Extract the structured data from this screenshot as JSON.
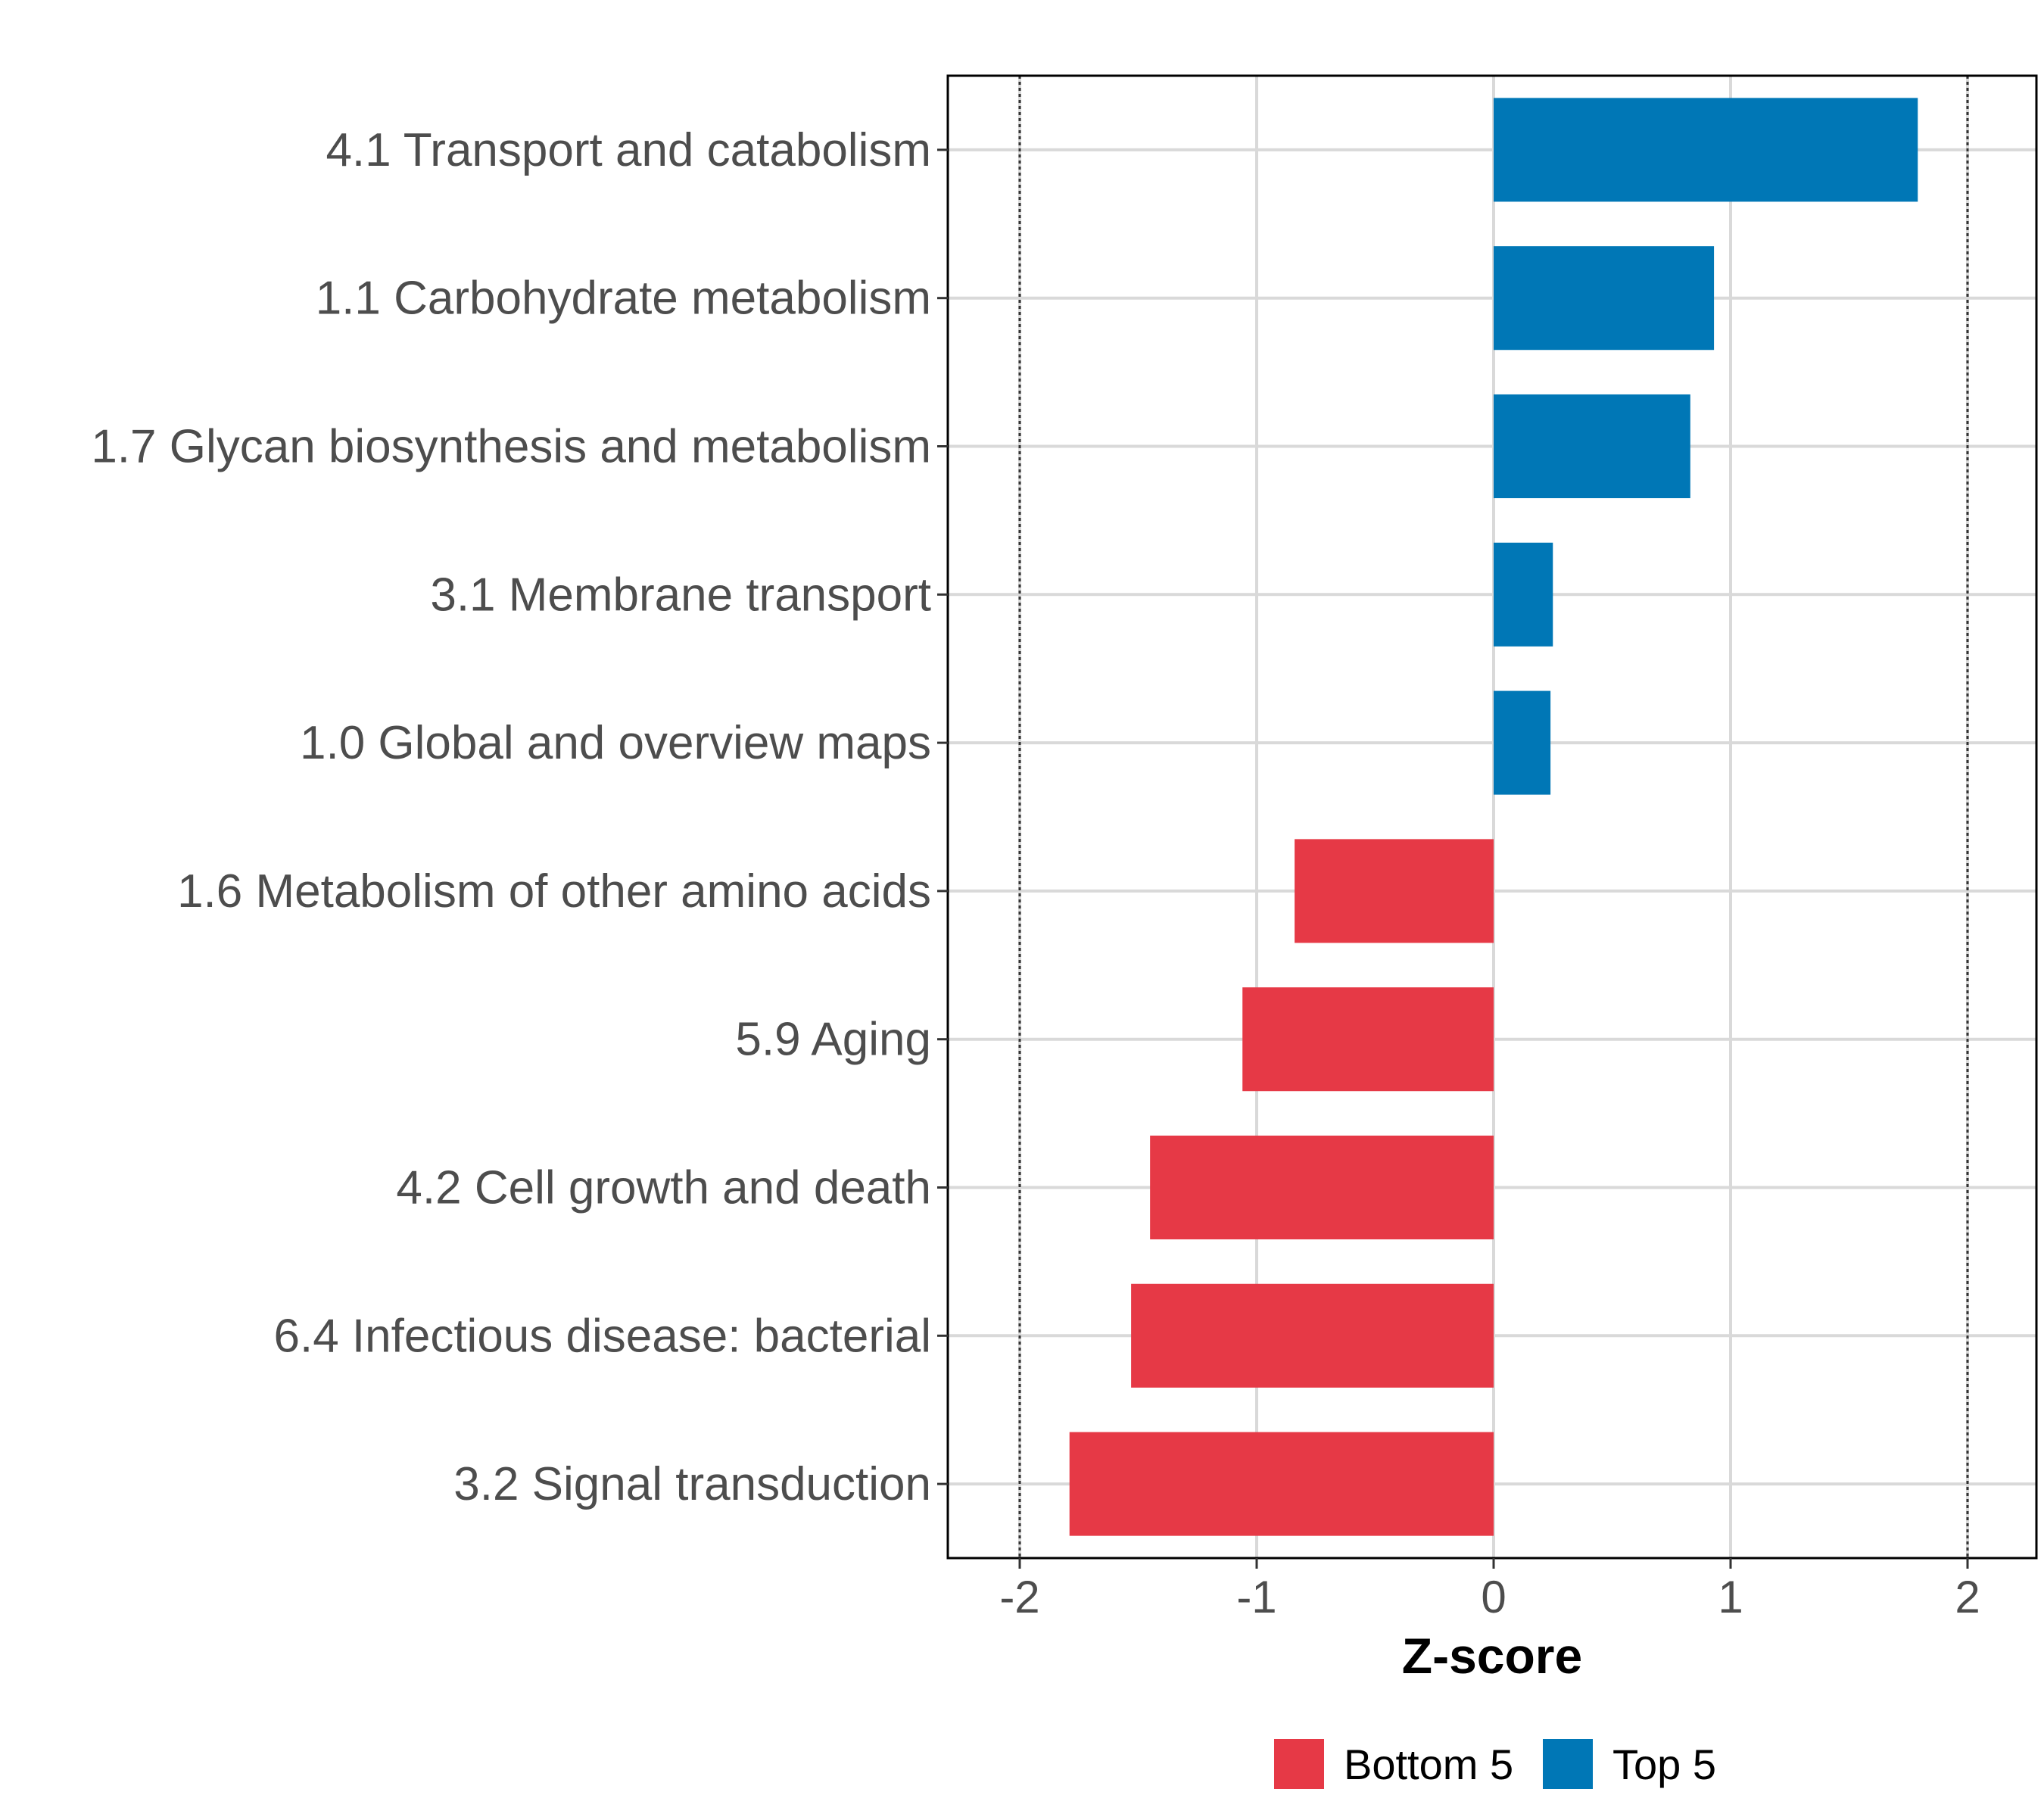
{
  "chart_data": {
    "type": "bar",
    "orientation": "horizontal",
    "title": "",
    "xlabel": "Z-score",
    "ylabel": "",
    "xlim": [
      -2.3,
      2.3
    ],
    "xticks": [
      -2,
      -1,
      0,
      1,
      2
    ],
    "xtick_labels": [
      "-2",
      "-1",
      "0",
      "1",
      "2"
    ],
    "reference_lines": [
      -2,
      2
    ],
    "grid": true,
    "categories": [
      "4.1 Transport and catabolism",
      "1.1 Carbohydrate metabolism",
      "1.7 Glycan biosynthesis and metabolism",
      "3.1 Membrane transport",
      "1.0 Global and overview maps",
      "1.6 Metabolism of other amino acids",
      "5.9 Aging",
      "4.2 Cell growth and death",
      "6.4 Infectious disease: bacterial",
      "3.2 Signal transduction"
    ],
    "values": [
      1.79,
      0.93,
      0.83,
      0.25,
      0.24,
      -0.84,
      -1.06,
      -1.45,
      -1.53,
      -1.79
    ],
    "groups": [
      "Top 5",
      "Top 5",
      "Top 5",
      "Top 5",
      "Top 5",
      "Bottom 5",
      "Bottom 5",
      "Bottom 5",
      "Bottom 5",
      "Bottom 5"
    ],
    "legend": {
      "position": "bottom",
      "entries": [
        {
          "label": "Bottom 5",
          "color": "#E63946"
        },
        {
          "label": "Top 5",
          "color": "#0077B6"
        }
      ]
    }
  }
}
